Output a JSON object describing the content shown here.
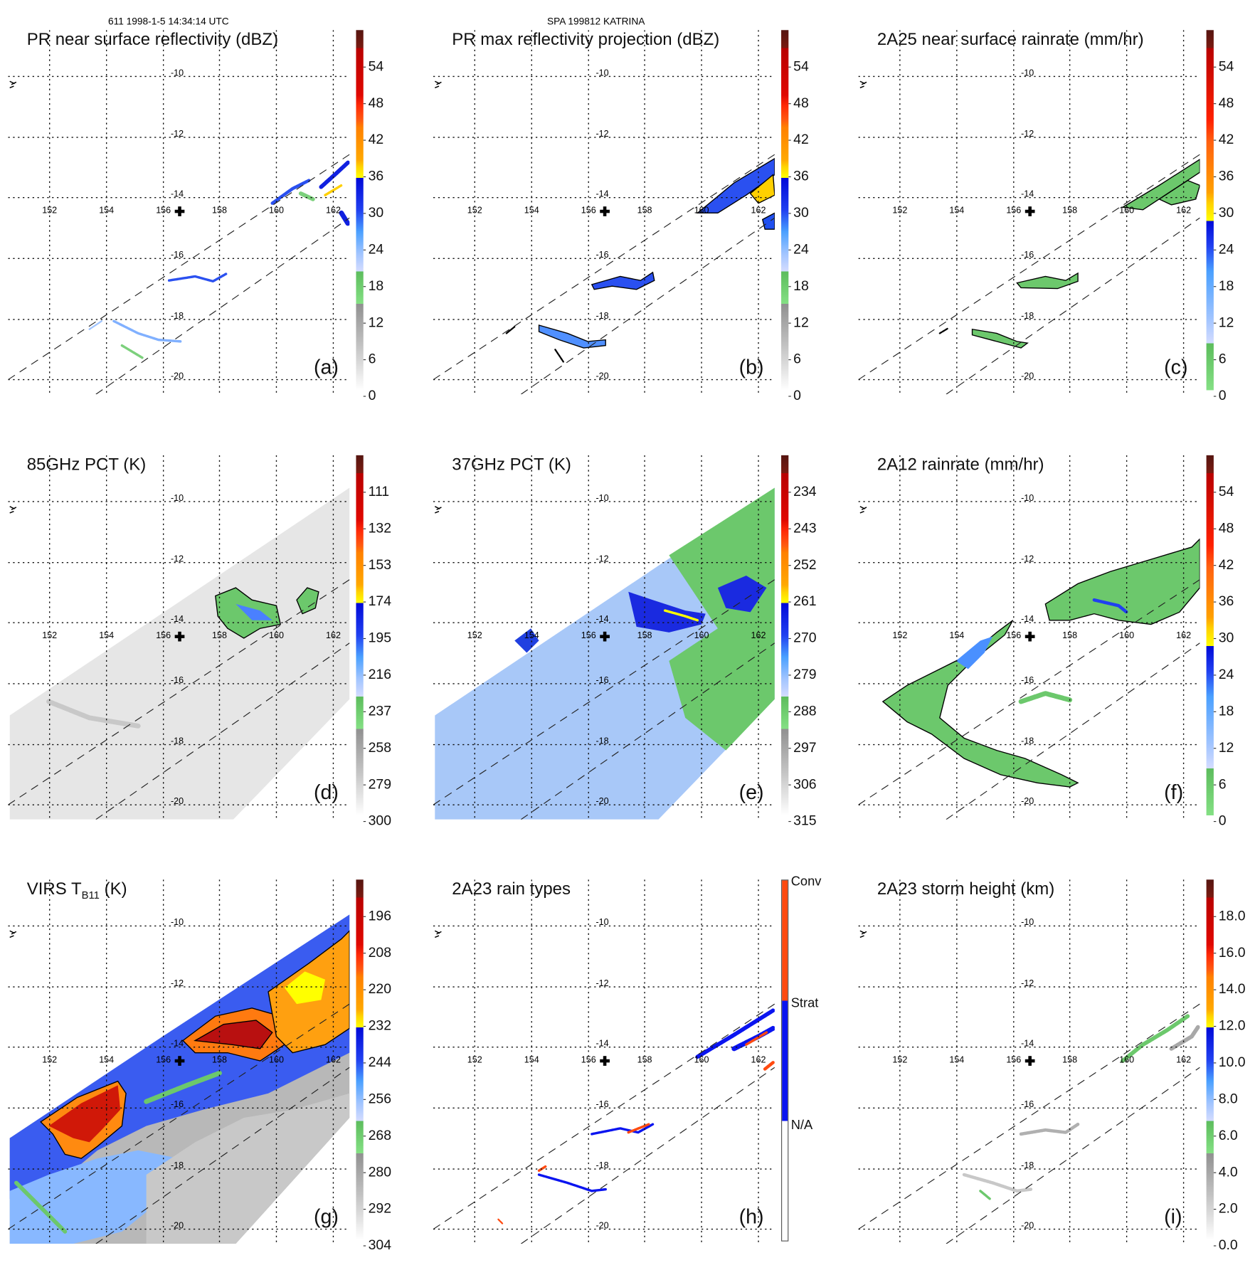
{
  "header": {
    "orbit_info": "611 1998-1-5 14:34:14 UTC",
    "storm_info": "SPA 199812 KATRINA"
  },
  "axes": {
    "lon_labels": [
      "152",
      "154",
      "156",
      "158",
      "160",
      "162"
    ],
    "lat_labels": [
      "-10",
      "-12",
      "-14",
      "-16",
      "-18",
      "-20"
    ]
  },
  "panels": [
    {
      "id": "a",
      "title": "PR near surface reflectivity (dBZ)",
      "label": "(a)",
      "colormap": "standard",
      "colorbar": [
        "54",
        "48",
        "42",
        "36",
        "30",
        "24",
        "18",
        "12",
        "6",
        "0"
      ]
    },
    {
      "id": "b",
      "title": "PR max reflectivity projection (dBZ)",
      "label": "(b)",
      "colormap": "standard",
      "colorbar": [
        "54",
        "48",
        "42",
        "36",
        "30",
        "24",
        "18",
        "12",
        "6",
        "0"
      ]
    },
    {
      "id": "c",
      "title": "2A25 near surface rainrate (mm/hr)",
      "label": "(c)",
      "colormap": "rain",
      "colorbar": [
        "54",
        "48",
        "42",
        "36",
        "30",
        "24",
        "18",
        "12",
        "6",
        "0"
      ]
    },
    {
      "id": "d",
      "title": "85GHz PCT (K)",
      "label": "(d)",
      "colormap": "standard",
      "colorbar": [
        "111",
        "132",
        "153",
        "174",
        "195",
        "216",
        "237",
        "258",
        "279",
        "300"
      ]
    },
    {
      "id": "e",
      "title": "37GHz PCT (K)",
      "label": "(e)",
      "colormap": "standard",
      "colorbar": [
        "234",
        "243",
        "252",
        "261",
        "270",
        "279",
        "288",
        "297",
        "306",
        "315"
      ]
    },
    {
      "id": "f",
      "title": "2A12 rainrate (mm/hr)",
      "label": "(f)",
      "colormap": "rain",
      "colorbar": [
        "54",
        "48",
        "42",
        "36",
        "30",
        "24",
        "18",
        "12",
        "6",
        "0"
      ]
    },
    {
      "id": "g",
      "title": "VIRS T",
      "title_sub": "B11",
      "title_suffix": " (K)",
      "label": "(g)",
      "colormap": "standard",
      "colorbar": [
        "196",
        "208",
        "220",
        "232",
        "244",
        "256",
        "268",
        "280",
        "292",
        "304"
      ]
    },
    {
      "id": "h",
      "title": "2A23 rain types",
      "label": "(h)",
      "colormap": "raintype",
      "colorbar": [
        "Conv",
        "Strat",
        "N/A"
      ]
    },
    {
      "id": "i",
      "title": "2A23 storm height (km)",
      "label": "(i)",
      "colormap": "standard",
      "colorbar": [
        "18.0",
        "16.0",
        "14.0",
        "12.0",
        "10.0",
        "8.0",
        "6.0",
        "4.0",
        "2.0",
        "0.0"
      ]
    }
  ],
  "colors": {
    "convective": "#ff4a10",
    "stratiform": "#0a14f0",
    "green": "#6cc86c",
    "light_blue": "#a8c8f8"
  }
}
